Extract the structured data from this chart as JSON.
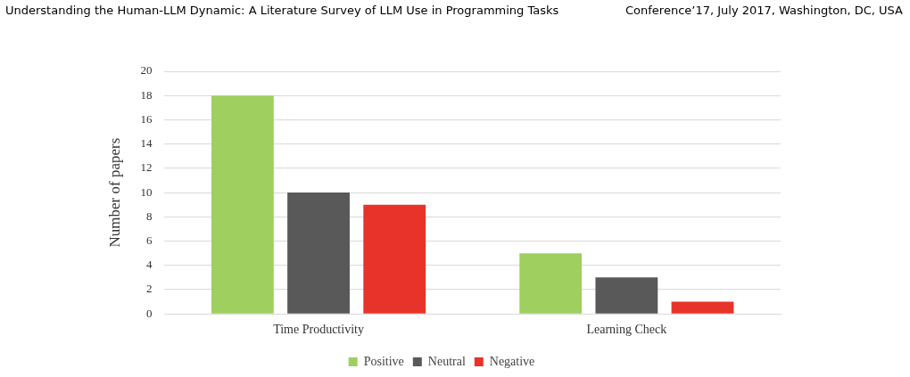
{
  "chart_data": {
    "type": "bar",
    "ylabel": "Number of papers",
    "annotations": [
      "Understanding the Human-LLM Dynamic: A Literature Survey of LLM Use in Programming Tasks",
      "Conference’17, July 2017, Washington, DC, USA"
    ],
    "categories": [
      "Time Productivity",
      "Learning Check"
    ],
    "series": [
      {
        "name": "Positive",
        "color": "#9fcf5f",
        "values": [
          18,
          5
        ]
      },
      {
        "name": "Neutral",
        "color": "#595959",
        "values": [
          10,
          3
        ]
      },
      {
        "name": "Negative",
        "color": "#e8332a",
        "values": [
          9,
          1
        ]
      }
    ],
    "ylim": [
      0,
      20
    ],
    "yticks": [
      0,
      2,
      4,
      6,
      8,
      10,
      12,
      14,
      16,
      18,
      20
    ],
    "grid": "y",
    "legend": "bottom"
  }
}
